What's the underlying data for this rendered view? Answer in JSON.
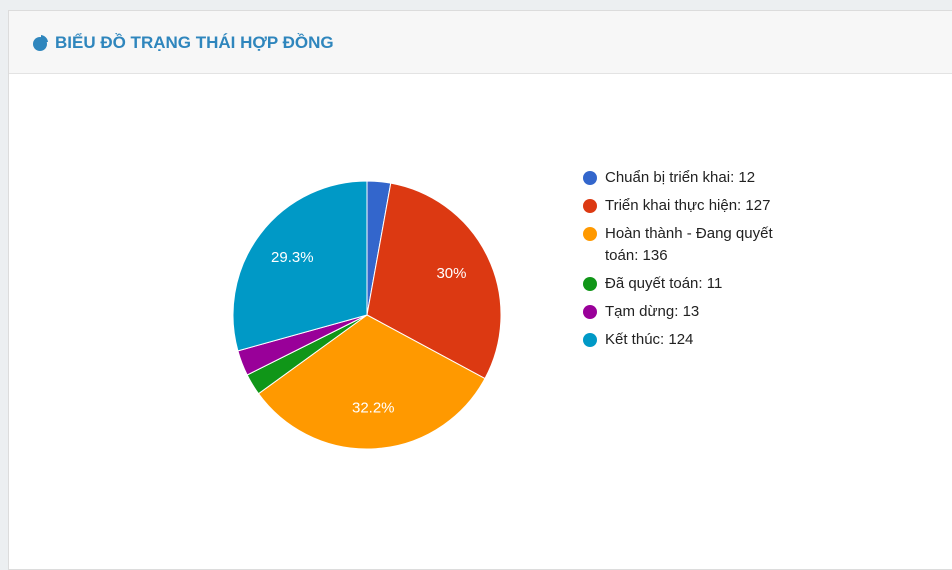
{
  "chart_data": {
    "type": "pie",
    "title": "BIỂU ĐỒ TRẠNG THÁI HỢP ĐỒNG",
    "categories": [
      "Chuẩn bị triển khai: 12",
      "Triển khai thực hiện: 127",
      "Hoàn thành - Đang quyết toán: 136",
      "Đã quyết toán: 11",
      "Tạm dừng: 13",
      "Kết thúc: 124"
    ],
    "values": [
      12,
      127,
      136,
      11,
      13,
      124
    ],
    "value_labels": [
      null,
      "30%",
      "32.2%",
      null,
      null,
      "29.3%"
    ],
    "colors": [
      "#3366cc",
      "#dc3912",
      "#ff9900",
      "#109618",
      "#990099",
      "#0099c6"
    ],
    "legend": "right"
  }
}
